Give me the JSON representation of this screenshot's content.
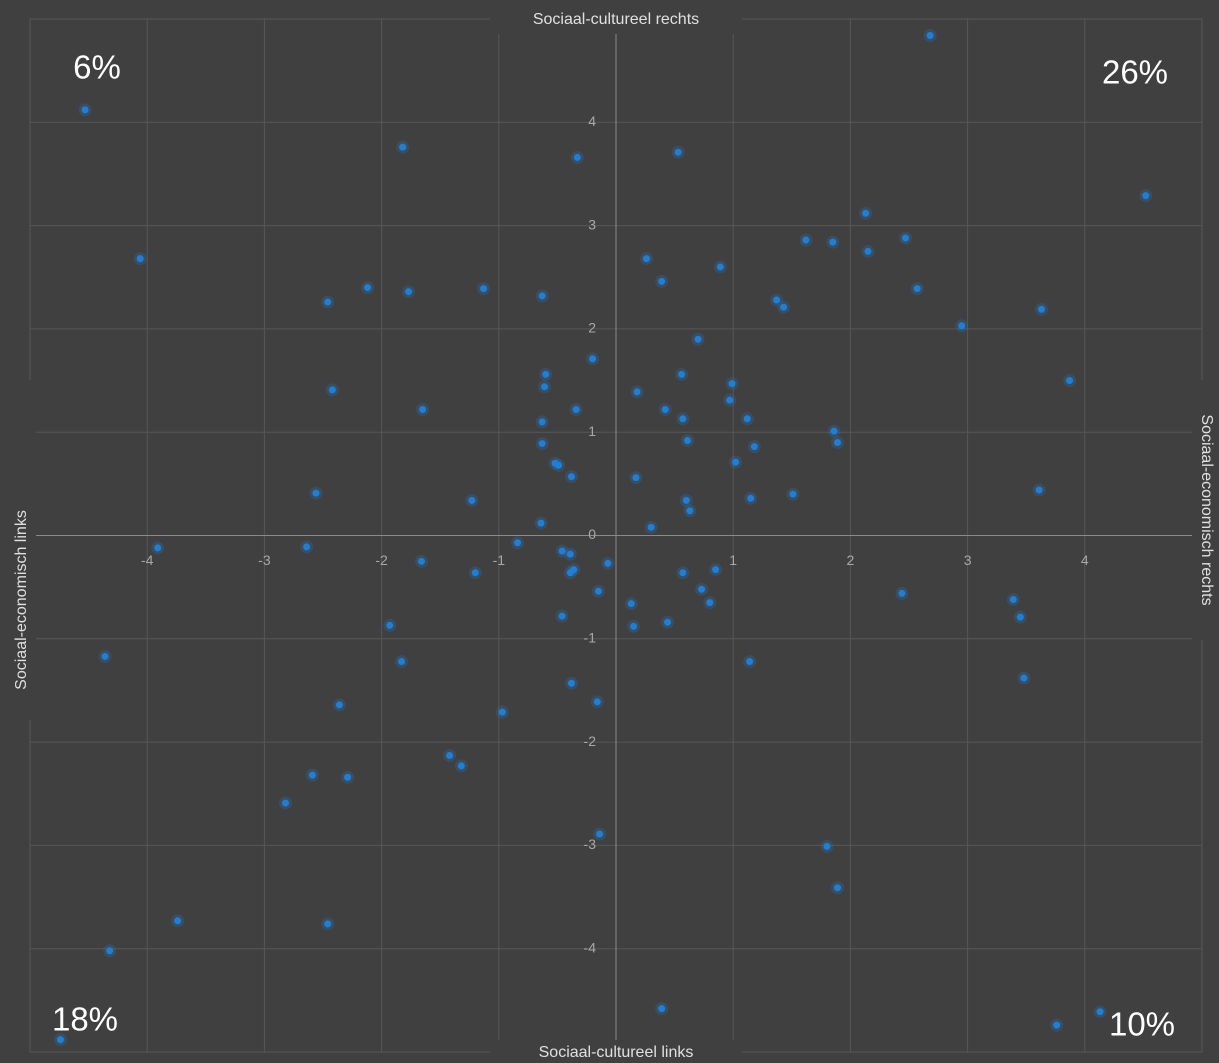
{
  "chart_data": {
    "type": "scatter",
    "axis_labels": {
      "top": "Sociaal-cultureel rechts",
      "bottom": "Sociaal-cultureel links",
      "left": "Sociaal-economisch links",
      "right": "Sociaal-economisch rechts"
    },
    "annotations": [
      {
        "text": "6%",
        "corner": "top-left"
      },
      {
        "text": "26%",
        "corner": "top-right"
      },
      {
        "text": "18%",
        "corner": "bottom-left"
      },
      {
        "text": "10%",
        "corner": "bottom-right"
      }
    ],
    "color": "#1f7fd8",
    "xlim": [
      -5,
      5
    ],
    "ylim": [
      -5,
      5
    ],
    "xticks": [
      -4,
      -3,
      -2,
      -1,
      1,
      2,
      3,
      4
    ],
    "yticks": [
      -4,
      -3,
      -2,
      -1,
      0,
      1,
      2,
      3,
      4
    ],
    "grid": true,
    "x": [
      -4.53,
      2.68,
      -1.82,
      -0.33,
      0.53,
      4.52,
      -4.06,
      2.13,
      1.62,
      1.85,
      2.47,
      2.15,
      0.26,
      0.89,
      0.39,
      -2.12,
      -1.77,
      -1.13,
      -2.46,
      -0.63,
      2.57,
      1.37,
      1.43,
      3.63,
      2.95,
      0.7,
      -0.2,
      -0.6,
      0.56,
      -0.61,
      3.87,
      -2.42,
      0.18,
      0.99,
      0.97,
      -1.65,
      -0.34,
      0.42,
      -0.63,
      0.57,
      1.12,
      1.86,
      1.89,
      -0.63,
      0.61,
      1.18,
      -0.52,
      -0.49,
      1.02,
      -0.38,
      0.17,
      3.61,
      -2.56,
      1.51,
      1.15,
      0.6,
      -1.23,
      0.63,
      -0.64,
      0.3,
      -0.84,
      -2.64,
      -3.91,
      -0.07,
      -0.46,
      -0.39,
      -1.66,
      -1.2,
      -0.36,
      -0.39,
      0.57,
      0.85,
      -0.15,
      0.73,
      2.44,
      0.8,
      3.39,
      0.13,
      -0.46,
      3.45,
      0.15,
      0.44,
      -1.93,
      -4.36,
      -1.83,
      1.14,
      -0.38,
      3.48,
      -2.36,
      -0.16,
      -0.97,
      -1.42,
      -1.32,
      -2.59,
      -2.29,
      -2.82,
      -0.14,
      1.8,
      1.89,
      -3.74,
      -2.46,
      -4.32,
      0.39,
      -4.74,
      3.76,
      4.13
    ],
    "values": [
      4.12,
      4.84,
      3.76,
      3.66,
      3.71,
      3.29,
      2.68,
      3.12,
      2.86,
      2.84,
      2.88,
      2.75,
      2.68,
      2.6,
      2.46,
      2.4,
      2.36,
      2.39,
      2.26,
      2.32,
      2.39,
      2.28,
      2.21,
      2.19,
      2.03,
      1.9,
      1.71,
      1.56,
      1.56,
      1.44,
      1.5,
      1.41,
      1.39,
      1.47,
      1.31,
      1.22,
      1.22,
      1.22,
      1.1,
      1.13,
      1.13,
      1.01,
      0.9,
      0.89,
      0.92,
      0.86,
      0.7,
      0.68,
      0.71,
      0.57,
      0.56,
      0.44,
      0.41,
      0.4,
      0.36,
      0.34,
      0.34,
      0.24,
      0.12,
      0.08,
      -0.07,
      -0.11,
      -0.12,
      -0.27,
      -0.15,
      -0.18,
      -0.25,
      -0.36,
      -0.33,
      -0.36,
      -0.36,
      -0.33,
      -0.54,
      -0.52,
      -0.56,
      -0.65,
      -0.62,
      -0.66,
      -0.78,
      -0.79,
      -0.88,
      -0.84,
      -0.87,
      -1.17,
      -1.22,
      -1.22,
      -1.43,
      -1.38,
      -1.64,
      -1.61,
      -1.71,
      -2.13,
      -2.23,
      -2.32,
      -2.34,
      -2.59,
      -2.89,
      -3.01,
      -3.41,
      -3.73,
      -3.76,
      -4.02,
      -4.58,
      -4.88,
      -4.74,
      -4.61
    ]
  }
}
